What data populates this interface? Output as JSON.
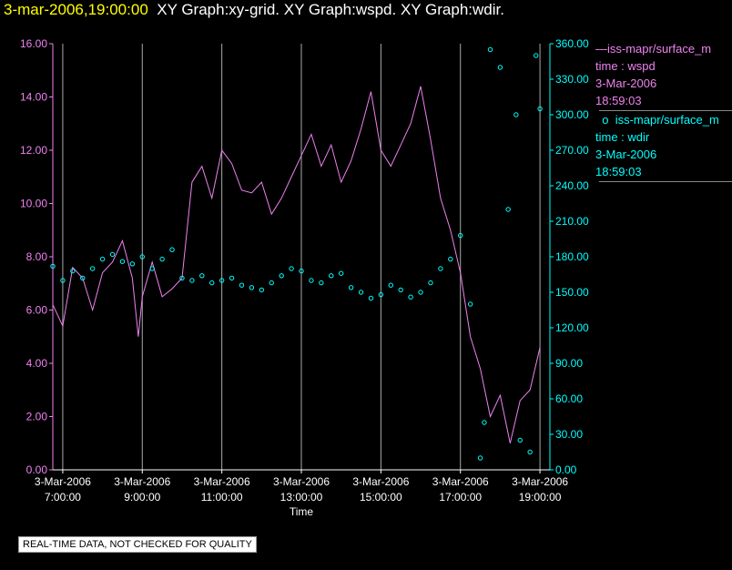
{
  "header": {
    "timestamp": "3-mar-2006,19:00:00",
    "graphs": "XY Graph:xy-grid.  XY Graph:wspd.  XY Graph:wdir."
  },
  "legend": [
    {
      "marker": "—",
      "source": "iss-mapr/surface_m",
      "var_line": "time : wspd",
      "date": "3-Mar-2006",
      "time": "18:59:03",
      "color": "#ee82ee"
    },
    {
      "marker": "o",
      "source": "iss-mapr/surface_m",
      "var_line": "time : wdir",
      "date": "3-Mar-2006",
      "time": "18:59:03",
      "color": "#00ffff"
    }
  ],
  "disclaimer": "REAL-TIME DATA, NOT CHECKED FOR QUALITY",
  "chart_data": {
    "type": "scatter",
    "xlabel": "Time",
    "x_ticks": [
      {
        "date": "3-Mar-2006",
        "time": "7:00:00"
      },
      {
        "date": "3-Mar-2006",
        "time": "9:00:00"
      },
      {
        "date": "3-Mar-2006",
        "time": "11:00:00"
      },
      {
        "date": "3-Mar-2006",
        "time": "13:00:00"
      },
      {
        "date": "3-Mar-2006",
        "time": "15:00:00"
      },
      {
        "date": "3-Mar-2006",
        "time": "17:00:00"
      },
      {
        "date": "3-Mar-2006",
        "time": "19:00:00"
      }
    ],
    "xlim_hours": [
      6.75,
      19.25
    ],
    "y_left": {
      "ylim": [
        0,
        16
      ],
      "ticks": [
        "0.00",
        "2.00",
        "4.00",
        "6.00",
        "8.00",
        "10.00",
        "12.00",
        "14.00",
        "16.00"
      ],
      "color": "#ee82ee"
    },
    "y_right": {
      "ylim": [
        0,
        360
      ],
      "ticks": [
        "0.00",
        "30.00",
        "60.00",
        "90.00",
        "120.00",
        "150.00",
        "180.00",
        "210.00",
        "240.00",
        "270.00",
        "300.00",
        "330.00",
        "360.00"
      ],
      "color": "#00ffff"
    },
    "grid": "vertical",
    "series": [
      {
        "name": "time : wspd",
        "axis": "left",
        "style": "line",
        "color": "#ee82ee",
        "points": [
          [
            6.75,
            6.2
          ],
          [
            7.0,
            5.4
          ],
          [
            7.25,
            7.6
          ],
          [
            7.5,
            7.2
          ],
          [
            7.75,
            6.0
          ],
          [
            8.0,
            7.4
          ],
          [
            8.25,
            7.8
          ],
          [
            8.5,
            8.6
          ],
          [
            8.75,
            7.2
          ],
          [
            8.9,
            5.0
          ],
          [
            9.0,
            6.5
          ],
          [
            9.25,
            7.8
          ],
          [
            9.5,
            6.5
          ],
          [
            9.75,
            6.8
          ],
          [
            10.0,
            7.2
          ],
          [
            10.25,
            10.8
          ],
          [
            10.5,
            11.4
          ],
          [
            10.75,
            10.2
          ],
          [
            11.0,
            12.0
          ],
          [
            11.25,
            11.5
          ],
          [
            11.5,
            10.5
          ],
          [
            11.75,
            10.4
          ],
          [
            12.0,
            10.8
          ],
          [
            12.25,
            9.6
          ],
          [
            12.5,
            10.2
          ],
          [
            12.75,
            11.0
          ],
          [
            13.0,
            11.8
          ],
          [
            13.25,
            12.6
          ],
          [
            13.5,
            11.4
          ],
          [
            13.75,
            12.2
          ],
          [
            14.0,
            10.8
          ],
          [
            14.25,
            11.6
          ],
          [
            14.5,
            12.8
          ],
          [
            14.75,
            14.2
          ],
          [
            15.0,
            12.0
          ],
          [
            15.25,
            11.4
          ],
          [
            15.5,
            12.2
          ],
          [
            15.75,
            13.0
          ],
          [
            16.0,
            14.4
          ],
          [
            16.25,
            12.4
          ],
          [
            16.5,
            10.2
          ],
          [
            16.75,
            9.0
          ],
          [
            17.0,
            7.4
          ],
          [
            17.25,
            5.0
          ],
          [
            17.5,
            3.8
          ],
          [
            17.75,
            2.0
          ],
          [
            18.0,
            2.8
          ],
          [
            18.25,
            1.0
          ],
          [
            18.5,
            2.6
          ],
          [
            18.75,
            3.0
          ],
          [
            19.0,
            4.6
          ]
        ]
      },
      {
        "name": "time : wdir",
        "axis": "right",
        "style": "markers",
        "color": "#00ffff",
        "points": [
          [
            6.75,
            172
          ],
          [
            7.0,
            160
          ],
          [
            7.25,
            168
          ],
          [
            7.5,
            162
          ],
          [
            7.75,
            170
          ],
          [
            8.0,
            178
          ],
          [
            8.25,
            182
          ],
          [
            8.5,
            176
          ],
          [
            8.75,
            174
          ],
          [
            9.0,
            180
          ],
          [
            9.25,
            170
          ],
          [
            9.5,
            178
          ],
          [
            9.75,
            186
          ],
          [
            10.0,
            162
          ],
          [
            10.25,
            160
          ],
          [
            10.5,
            164
          ],
          [
            10.75,
            158
          ],
          [
            11.0,
            160
          ],
          [
            11.25,
            162
          ],
          [
            11.5,
            156
          ],
          [
            11.75,
            154
          ],
          [
            12.0,
            152
          ],
          [
            12.25,
            158
          ],
          [
            12.5,
            164
          ],
          [
            12.75,
            170
          ],
          [
            13.0,
            168
          ],
          [
            13.25,
            160
          ],
          [
            13.5,
            158
          ],
          [
            13.75,
            164
          ],
          [
            14.0,
            166
          ],
          [
            14.25,
            154
          ],
          [
            14.5,
            150
          ],
          [
            14.75,
            145
          ],
          [
            15.0,
            148
          ],
          [
            15.25,
            156
          ],
          [
            15.5,
            152
          ],
          [
            15.75,
            146
          ],
          [
            16.0,
            150
          ],
          [
            16.25,
            158
          ],
          [
            16.5,
            170
          ],
          [
            16.75,
            178
          ],
          [
            17.0,
            198
          ],
          [
            17.25,
            140
          ],
          [
            17.5,
            10
          ],
          [
            17.6,
            40
          ],
          [
            17.75,
            355
          ],
          [
            18.0,
            340
          ],
          [
            18.2,
            220
          ],
          [
            18.4,
            300
          ],
          [
            18.5,
            25
          ],
          [
            18.75,
            15
          ],
          [
            18.9,
            350
          ],
          [
            19.0,
            305
          ]
        ]
      }
    ]
  }
}
